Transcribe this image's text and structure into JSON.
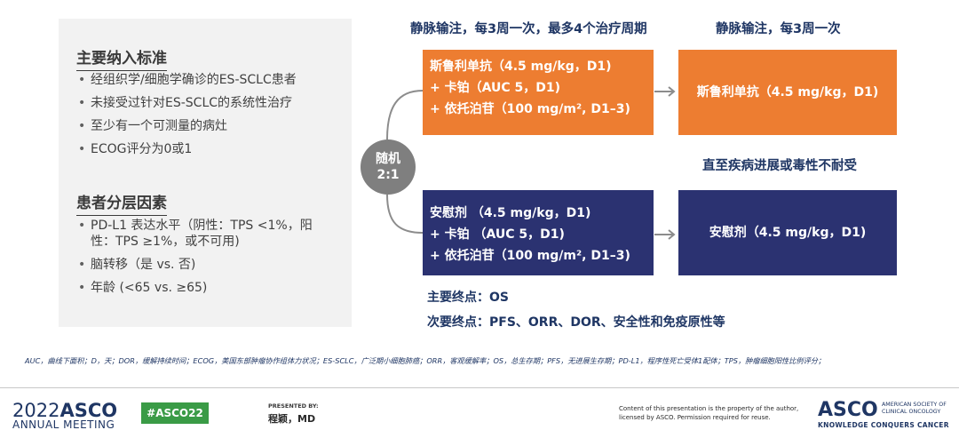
{
  "criteria": {
    "inclusion_title": "主要纳入标准",
    "inclusion": [
      "经组织学/细胞学确诊的ES-SCLC患者",
      "未接受过针对ES-SCLC的系统性治疗",
      "至少有一个可测量的病灶",
      "ECOG评分为0或1"
    ],
    "stratification_title": "患者分层因素",
    "stratification": [
      "PD-L1 表达水平（阴性：TPS <1%，阳性：TPS ≥1%，或不可用)",
      "脑转移（是 vs. 否)",
      "年龄 (<65 vs. ≥65)"
    ]
  },
  "diagram": {
    "header_induction": "静脉输注，每3周一次，最多4个治疗周期",
    "header_maintenance": "静脉输注，每3周一次",
    "randomization": [
      "随机",
      "2:1"
    ],
    "arm_a": {
      "induction": [
        "斯鲁利单抗（4.5 mg/kg，D1)",
        "+ 卡铂（AUC 5，D1)",
        "+ 依托泊苷（100 mg/m², D1–3)"
      ],
      "maintenance": "斯鲁利单抗（4.5 mg/kg，D1)",
      "color": "#ed7d31"
    },
    "maintenance_note": "直至疾病进展或毒性不耐受",
    "arm_b": {
      "induction": [
        "安慰剂 （4.5 mg/kg，D1)",
        "+ 卡铂 （AUC 5，D1)",
        "+ 依托泊苷（100 mg/m², D1–3)"
      ],
      "maintenance": "安慰剂（4.5 mg/kg，D1)",
      "color": "#2b3271"
    },
    "primary_endpoint": "主要终点：OS",
    "secondary_endpoint": "次要终点：PFS、ORR、DOR、安全性和免疫原性等"
  },
  "abbreviations": "AUC，曲线下面积；D，天；DOR，缓解持续时间；ECOG，美国东部肿瘤协作组体力状况；ES-SCLC，广泛期小细胞肺癌；ORR，客观缓解率；OS，总生存期；PFS，无进展生存期；PD-L1，程序性死亡受体1配体；TPS，肿瘤细胞阳性比例评分；",
  "footer": {
    "year": "2022",
    "asco": "ASCO",
    "annual_meeting": "ANNUAL MEETING",
    "hashtag": "#ASCO22",
    "presented_by_label": "PRESENTED BY:",
    "presenter": "程颖，MD",
    "copyright": "Content of this presentation is the property of the author, licensed by ASCO. Permission required for reuse.",
    "society_line": "AMERICAN SOCIETY OF CLINICAL ONCOLOGY",
    "tagline": "KNOWLEDGE CONQUERS CANCER"
  }
}
